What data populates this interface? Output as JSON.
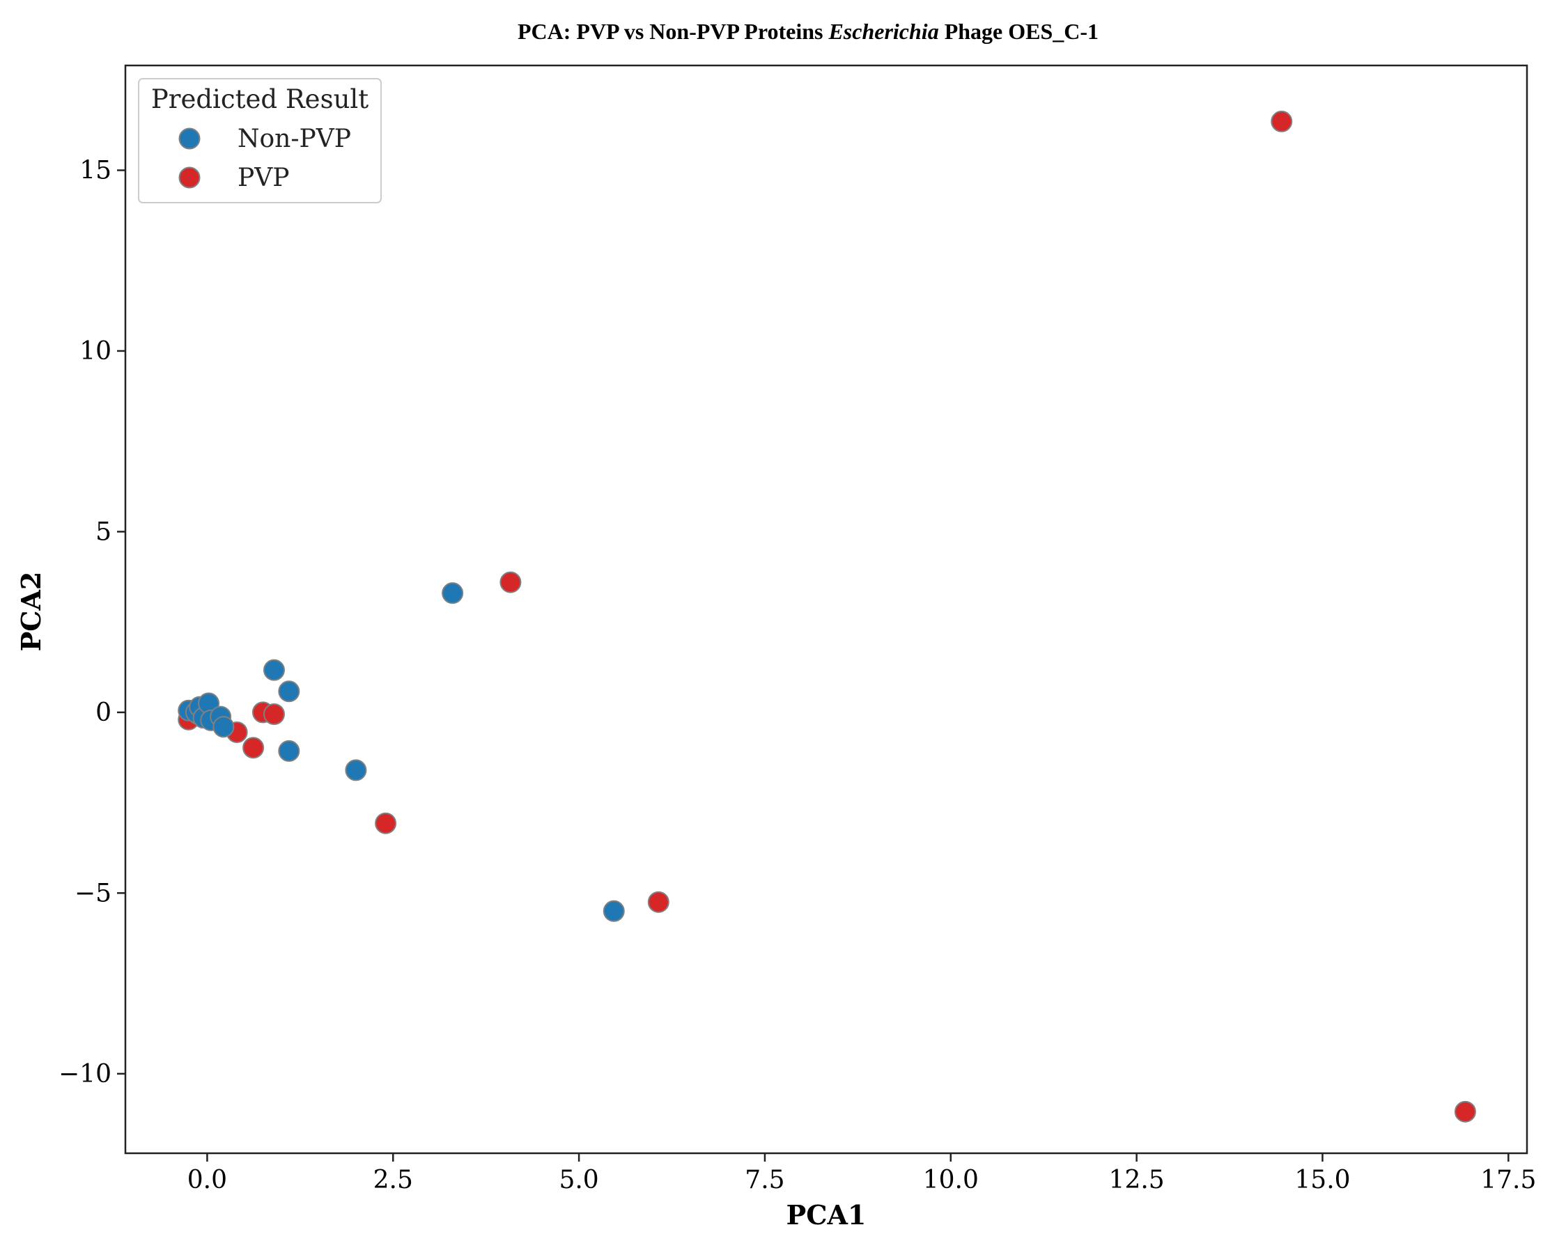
{
  "chart_data": {
    "type": "scatter",
    "title": {
      "prefix": "PCA: PVP vs Non-PVP Proteins ",
      "italic": "Escherichia",
      "suffix": " Phage OES_C-1"
    },
    "xlabel": "PCA1",
    "ylabel": "PCA2",
    "xlim": [
      -1.1,
      17.75
    ],
    "ylim": [
      -12.2,
      17.9
    ],
    "xticks": [
      0.0,
      2.5,
      5.0,
      7.5,
      10.0,
      12.5,
      15.0,
      17.5
    ],
    "xtick_labels": [
      "0.0",
      "2.5",
      "5.0",
      "7.5",
      "10.0",
      "12.5",
      "15.0",
      "17.5"
    ],
    "yticks": [
      -10,
      -5,
      0,
      5,
      10,
      15
    ],
    "ytick_labels": [
      "−10",
      "−5",
      "0",
      "5",
      "10",
      "15"
    ],
    "legend": {
      "title": "Predicted Result",
      "placement": "upper-left",
      "entries": [
        "Non-PVP",
        "PVP"
      ]
    },
    "series": [
      {
        "name": "PVP",
        "color": "#d62728",
        "points": [
          {
            "x": -0.25,
            "y": -0.2
          },
          {
            "x": -0.12,
            "y": -0.05
          },
          {
            "x": 0.4,
            "y": -0.55
          },
          {
            "x": 0.62,
            "y": -0.98
          },
          {
            "x": 0.75,
            "y": 0.0
          },
          {
            "x": 0.9,
            "y": -0.05
          },
          {
            "x": 2.4,
            "y": -3.07
          },
          {
            "x": 4.08,
            "y": 3.6
          },
          {
            "x": 6.07,
            "y": -5.25
          },
          {
            "x": 14.45,
            "y": 16.35
          },
          {
            "x": 16.92,
            "y": -11.05
          }
        ]
      },
      {
        "name": "Non-PVP",
        "color": "#1f77b4",
        "points": [
          {
            "x": -0.25,
            "y": 0.05
          },
          {
            "x": -0.15,
            "y": 0.0
          },
          {
            "x": -0.1,
            "y": 0.15
          },
          {
            "x": -0.05,
            "y": -0.15
          },
          {
            "x": 0.02,
            "y": 0.25
          },
          {
            "x": 0.05,
            "y": -0.22
          },
          {
            "x": 0.18,
            "y": -0.12
          },
          {
            "x": 0.22,
            "y": -0.4
          },
          {
            "x": 0.9,
            "y": 1.17
          },
          {
            "x": 1.1,
            "y": 0.58
          },
          {
            "x": 1.1,
            "y": -1.07
          },
          {
            "x": 2.0,
            "y": -1.6
          },
          {
            "x": 3.3,
            "y": 3.3
          },
          {
            "x": 5.47,
            "y": -5.5
          }
        ]
      }
    ]
  }
}
